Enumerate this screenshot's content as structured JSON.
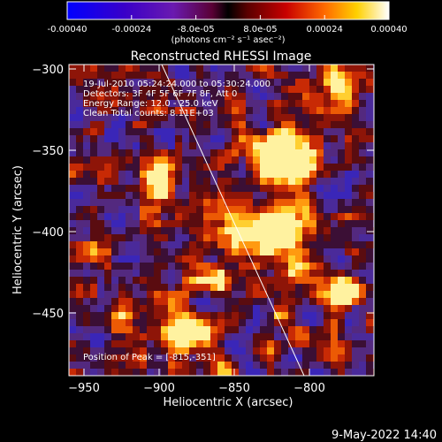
{
  "colorbar": {
    "ticks": [
      "-0.00040",
      "-0.00024",
      "-8.0e-05",
      "8.0e-05",
      "0.00024",
      "0.00040"
    ],
    "unit_label": "(photons cm⁻² s⁻¹ asec⁻²)"
  },
  "plot": {
    "title": "Reconstructed RHESSI Image",
    "info_lines": [
      "19-Jul-2010 05:24:24.000 to 05:30:24.000",
      "Detectors: 3F 4F 5F 6F 7F 8F, Att 0",
      "Energy Range: 12.0 - 25.0 keV",
      "Clean     Total counts: 8.11E+03"
    ],
    "peak_label": "Position of Peak = [-815,-351]",
    "xlabel": "Heliocentric X (arcsec)",
    "ylabel": "Heliocentric Y (arcsec)",
    "xticks": [
      "−950",
      "−900",
      "−850",
      "−800"
    ],
    "yticks": [
      "−300",
      "−350",
      "−400",
      "−450"
    ]
  },
  "footer": {
    "timestamp": "9-May-2022 14:40"
  }
}
